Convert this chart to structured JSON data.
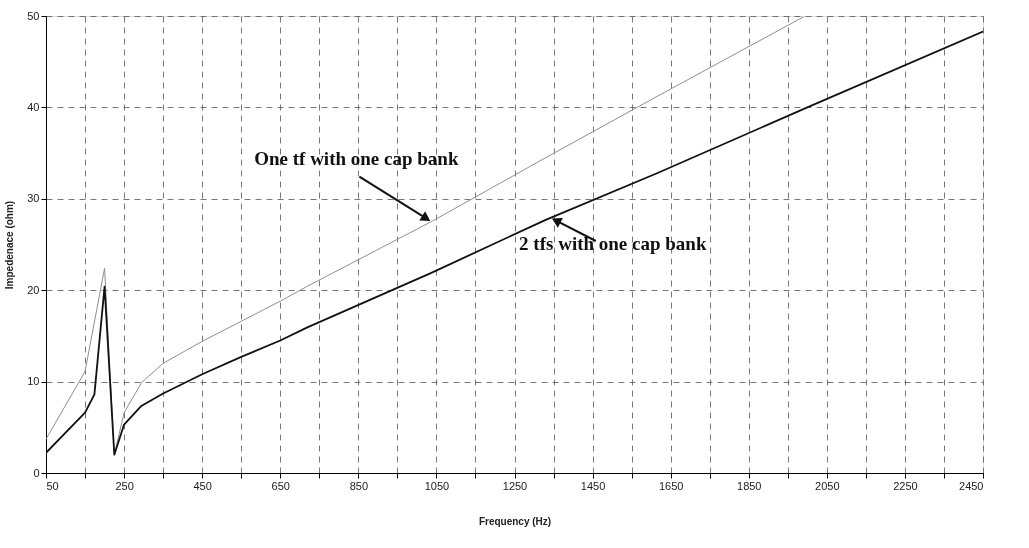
{
  "chart_data": {
    "type": "line",
    "xlabel": "Frequency (Hz)",
    "ylabel": "Impedenace (ohm)",
    "xlim": [
      50,
      2450
    ],
    "ylim": [
      0,
      50
    ],
    "xticks": [
      50,
      {
        "value": 150,
        "label": null
      },
      250,
      {
        "value": 350,
        "label": null
      },
      450,
      {
        "value": 550,
        "label": null
      },
      650,
      {
        "value": 750,
        "label": null
      },
      850,
      {
        "value": 950,
        "label": null
      },
      1050,
      {
        "value": 1150,
        "label": null
      },
      1250,
      {
        "value": 1350,
        "label": null
      },
      1450,
      {
        "value": 1550,
        "label": null
      },
      1650,
      {
        "value": 1750,
        "label": null
      },
      1850,
      {
        "value": 1950,
        "label": null
      },
      2050,
      {
        "value": 2150,
        "label": null
      },
      2250,
      {
        "value": 2350,
        "label": null
      },
      2450
    ],
    "yticks": [
      0,
      10,
      20,
      30,
      40,
      50
    ],
    "grid": true,
    "series": [
      {
        "color": "#8f8f8f",
        "x": [
          50,
          150,
          200,
          225,
          250,
          295,
          350,
          450,
          550,
          650,
          718,
          1037,
          1330,
          1615,
          1990
        ],
        "values": [
          3.7,
          11.1,
          22.4,
          2.0,
          6.6,
          9.9,
          12.0,
          14.4,
          16.6,
          18.8,
          20.4,
          27.5,
          34.5,
          41.2,
          49.9
        ]
      },
      {
        "color": "#111111",
        "x": [
          50,
          150,
          174,
          200,
          225,
          250,
          293,
          350,
          450,
          550,
          650,
          718,
          1037,
          1330,
          1615,
          2000,
          2450
        ],
        "values": [
          2.2,
          6.6,
          8.6,
          20.4,
          2.0,
          5.3,
          7.3,
          8.7,
          10.8,
          12.7,
          14.5,
          15.9,
          21.9,
          27.7,
          32.8,
          40.0,
          48.3
        ]
      }
    ],
    "annotations": [
      {
        "text": "One tf with one cap bank",
        "x": 1037,
        "y": 27.5
      },
      {
        "text": "2 tfs with one cap bank",
        "x": 1343,
        "y": 27.9
      }
    ]
  }
}
